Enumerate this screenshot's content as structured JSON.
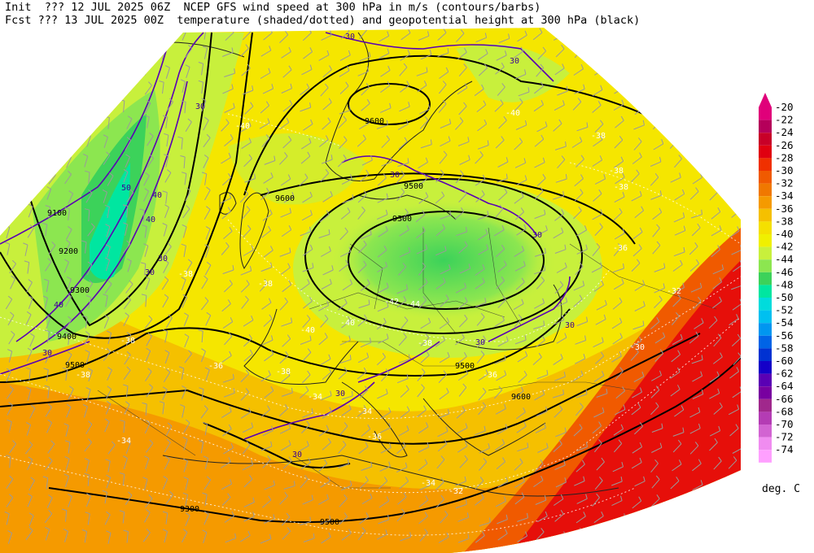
{
  "header": {
    "line1": "Init  ??? 12 JUL 2025 06Z  NCEP GFS wind speed at 300 hPa in m/s (contours/barbs)",
    "line2": "Fcst ??? 13 JUL 2025 00Z  temperature (shaded/dotted) and geopotential height at 300 hPa (black)"
  },
  "colorbar": {
    "labels": [
      "-20",
      "-22",
      "-24",
      "-26",
      "-28",
      "-30",
      "-32",
      "-34",
      "-36",
      "-38",
      "-40",
      "-42",
      "-44",
      "-46",
      "-48",
      "-50",
      "-52",
      "-54",
      "-56",
      "-58",
      "-60",
      "-62",
      "-64",
      "-66",
      "-68",
      "-70",
      "-72",
      "-74"
    ],
    "colors": [
      "#e0007a",
      "#b5005a",
      "#c80028",
      "#e00010",
      "#f03000",
      "#f05a00",
      "#f07800",
      "#f59a00",
      "#f5c000",
      "#f5e000",
      "#f0f000",
      "#c8f03c",
      "#8ce650",
      "#3cd25a",
      "#00e6a0",
      "#00dcdc",
      "#00c0f0",
      "#0096f0",
      "#0064e6",
      "#0032d2",
      "#1400c8",
      "#5a00b4",
      "#7800a0",
      "#a0288c",
      "#b43cb4",
      "#d264d2",
      "#f08cf0",
      "#ffa0ff"
    ],
    "unit": "deg. C"
  },
  "map": {
    "height_contours": [
      "9100",
      "9200",
      "9300",
      "9400",
      "9500",
      "9600",
      "9300",
      "9500",
      "9500",
      "9300",
      "9500",
      "9600",
      "9600"
    ],
    "wind_labels": [
      "30",
      "30",
      "30",
      "30",
      "30",
      "30",
      "40",
      "40",
      "40",
      "50",
      "30",
      "30",
      "30",
      "30",
      "30",
      "30"
    ],
    "temp_labels": [
      "-40",
      "-40",
      "-38",
      "-38",
      "-38",
      "-36",
      "-38",
      "-38",
      "-40",
      "-38",
      "-40",
      "-38",
      "-42",
      "-44",
      "-38",
      "-38",
      "-36",
      "-34",
      "-34",
      "-32",
      "-36",
      "-34",
      "-34",
      "-32",
      "-30",
      "-36"
    ]
  }
}
